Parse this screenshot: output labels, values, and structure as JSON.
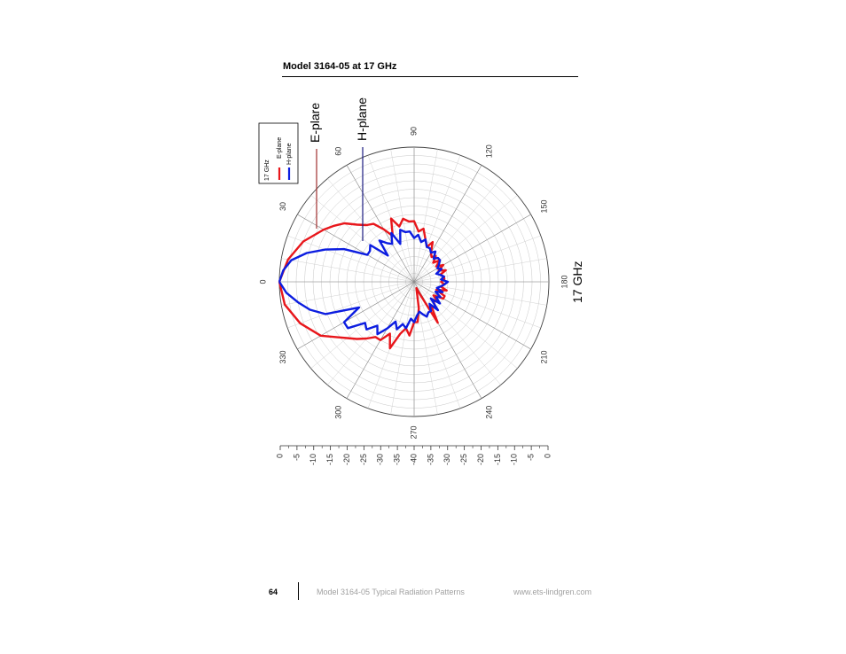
{
  "header": {
    "title": "Model 3164-05 at 17 GHz"
  },
  "footer": {
    "page_number": "64",
    "doc_title": "Model 3164-05 Typical Radiation Patterns",
    "url": "www.ets-lindgren.com"
  },
  "chart_data": {
    "type": "polar",
    "orientation": "rotated 90° counter-clockwise on page",
    "frequency_label": "17 GHz",
    "angle_labels": [
      "0",
      "30",
      "60",
      "90",
      "120",
      "150",
      "180",
      "210",
      "240",
      "270",
      "300",
      "330"
    ],
    "radial_scale_labels": [
      "0",
      "-5",
      "-10",
      "-15",
      "-20",
      "-25",
      "-30",
      "-35",
      "-40",
      "-35",
      "-30",
      "-25",
      "-20",
      "-15",
      "-10",
      "-5",
      "0"
    ],
    "r_range_db": [
      -40,
      0
    ],
    "grid": true,
    "legend": {
      "title": "17 GHz",
      "entries": [
        "E-plane",
        "H-plane"
      ]
    },
    "annotations": [
      "E-plare",
      "H-plane"
    ],
    "series": [
      {
        "name": "E-plane",
        "color": "#e8161b",
        "angles_deg": [
          0,
          10,
          20,
          30,
          35,
          40,
          45,
          50,
          55,
          60,
          65,
          70,
          75,
          80,
          85,
          90,
          95,
          100,
          105,
          110,
          115,
          120,
          125,
          130,
          135,
          140,
          145,
          150,
          155,
          160,
          165,
          170,
          175,
          180,
          185,
          190,
          195,
          200,
          205,
          210,
          215,
          220,
          225,
          230,
          235,
          240,
          245,
          250,
          255,
          260,
          265,
          270,
          275,
          280,
          285,
          290,
          295,
          300,
          305,
          310,
          315,
          320,
          330,
          340,
          350,
          360
        ],
        "values_db": [
          0,
          -2,
          -5,
          -9,
          -11,
          -13,
          -16,
          -18,
          -19,
          -22,
          -25,
          -20,
          -23,
          -21,
          -22,
          -22,
          -25,
          -24,
          -27,
          -29,
          -27,
          -30,
          -31,
          -30,
          -32,
          -30,
          -32,
          -30,
          -32,
          -30,
          -32,
          -31,
          -31,
          -32,
          -31,
          -32,
          -30,
          -33,
          -30,
          -30,
          -33,
          -31,
          -32,
          -30,
          -31,
          -26,
          -36,
          -38,
          -37,
          -32,
          -28,
          -28,
          -24,
          -26,
          -24,
          -19,
          -23,
          -20,
          -20,
          -18,
          -16,
          -14,
          -8,
          -4,
          -1,
          0
        ]
      },
      {
        "name": "H-plane",
        "color": "#0c1de0",
        "angles_deg": [
          0,
          5,
          10,
          15,
          20,
          25,
          30,
          35,
          40,
          45,
          50,
          55,
          60,
          65,
          70,
          75,
          80,
          85,
          90,
          95,
          100,
          105,
          110,
          115,
          120,
          125,
          130,
          135,
          140,
          145,
          150,
          155,
          160,
          165,
          170,
          175,
          180,
          185,
          190,
          195,
          200,
          205,
          210,
          215,
          220,
          225,
          230,
          235,
          240,
          245,
          250,
          255,
          260,
          265,
          270,
          275,
          280,
          285,
          290,
          295,
          300,
          305,
          310,
          315,
          320,
          325,
          330,
          335,
          340,
          345,
          350,
          355,
          360
        ],
        "values_db": [
          0,
          -1,
          -3,
          -7,
          -12,
          -17,
          -24,
          -24,
          -23,
          -29,
          -24,
          -26,
          -27,
          -24,
          -28,
          -24,
          -25,
          -25,
          -27,
          -26,
          -28,
          -27,
          -29,
          -29,
          -30,
          -29,
          -31,
          -30,
          -30,
          -31,
          -32,
          -31,
          -33,
          -32,
          -31,
          -32,
          -30,
          -31,
          -32,
          -33,
          -31,
          -33,
          -31,
          -32,
          -30,
          -33,
          -29,
          -32,
          -30,
          -30,
          -29,
          -30,
          -31,
          -30,
          -28,
          -29,
          -26,
          -27,
          -25,
          -27,
          -24,
          -21,
          -23,
          -20,
          -21,
          -16,
          -16,
          -22,
          -12,
          -8,
          -5,
          -2,
          0
        ]
      }
    ]
  }
}
